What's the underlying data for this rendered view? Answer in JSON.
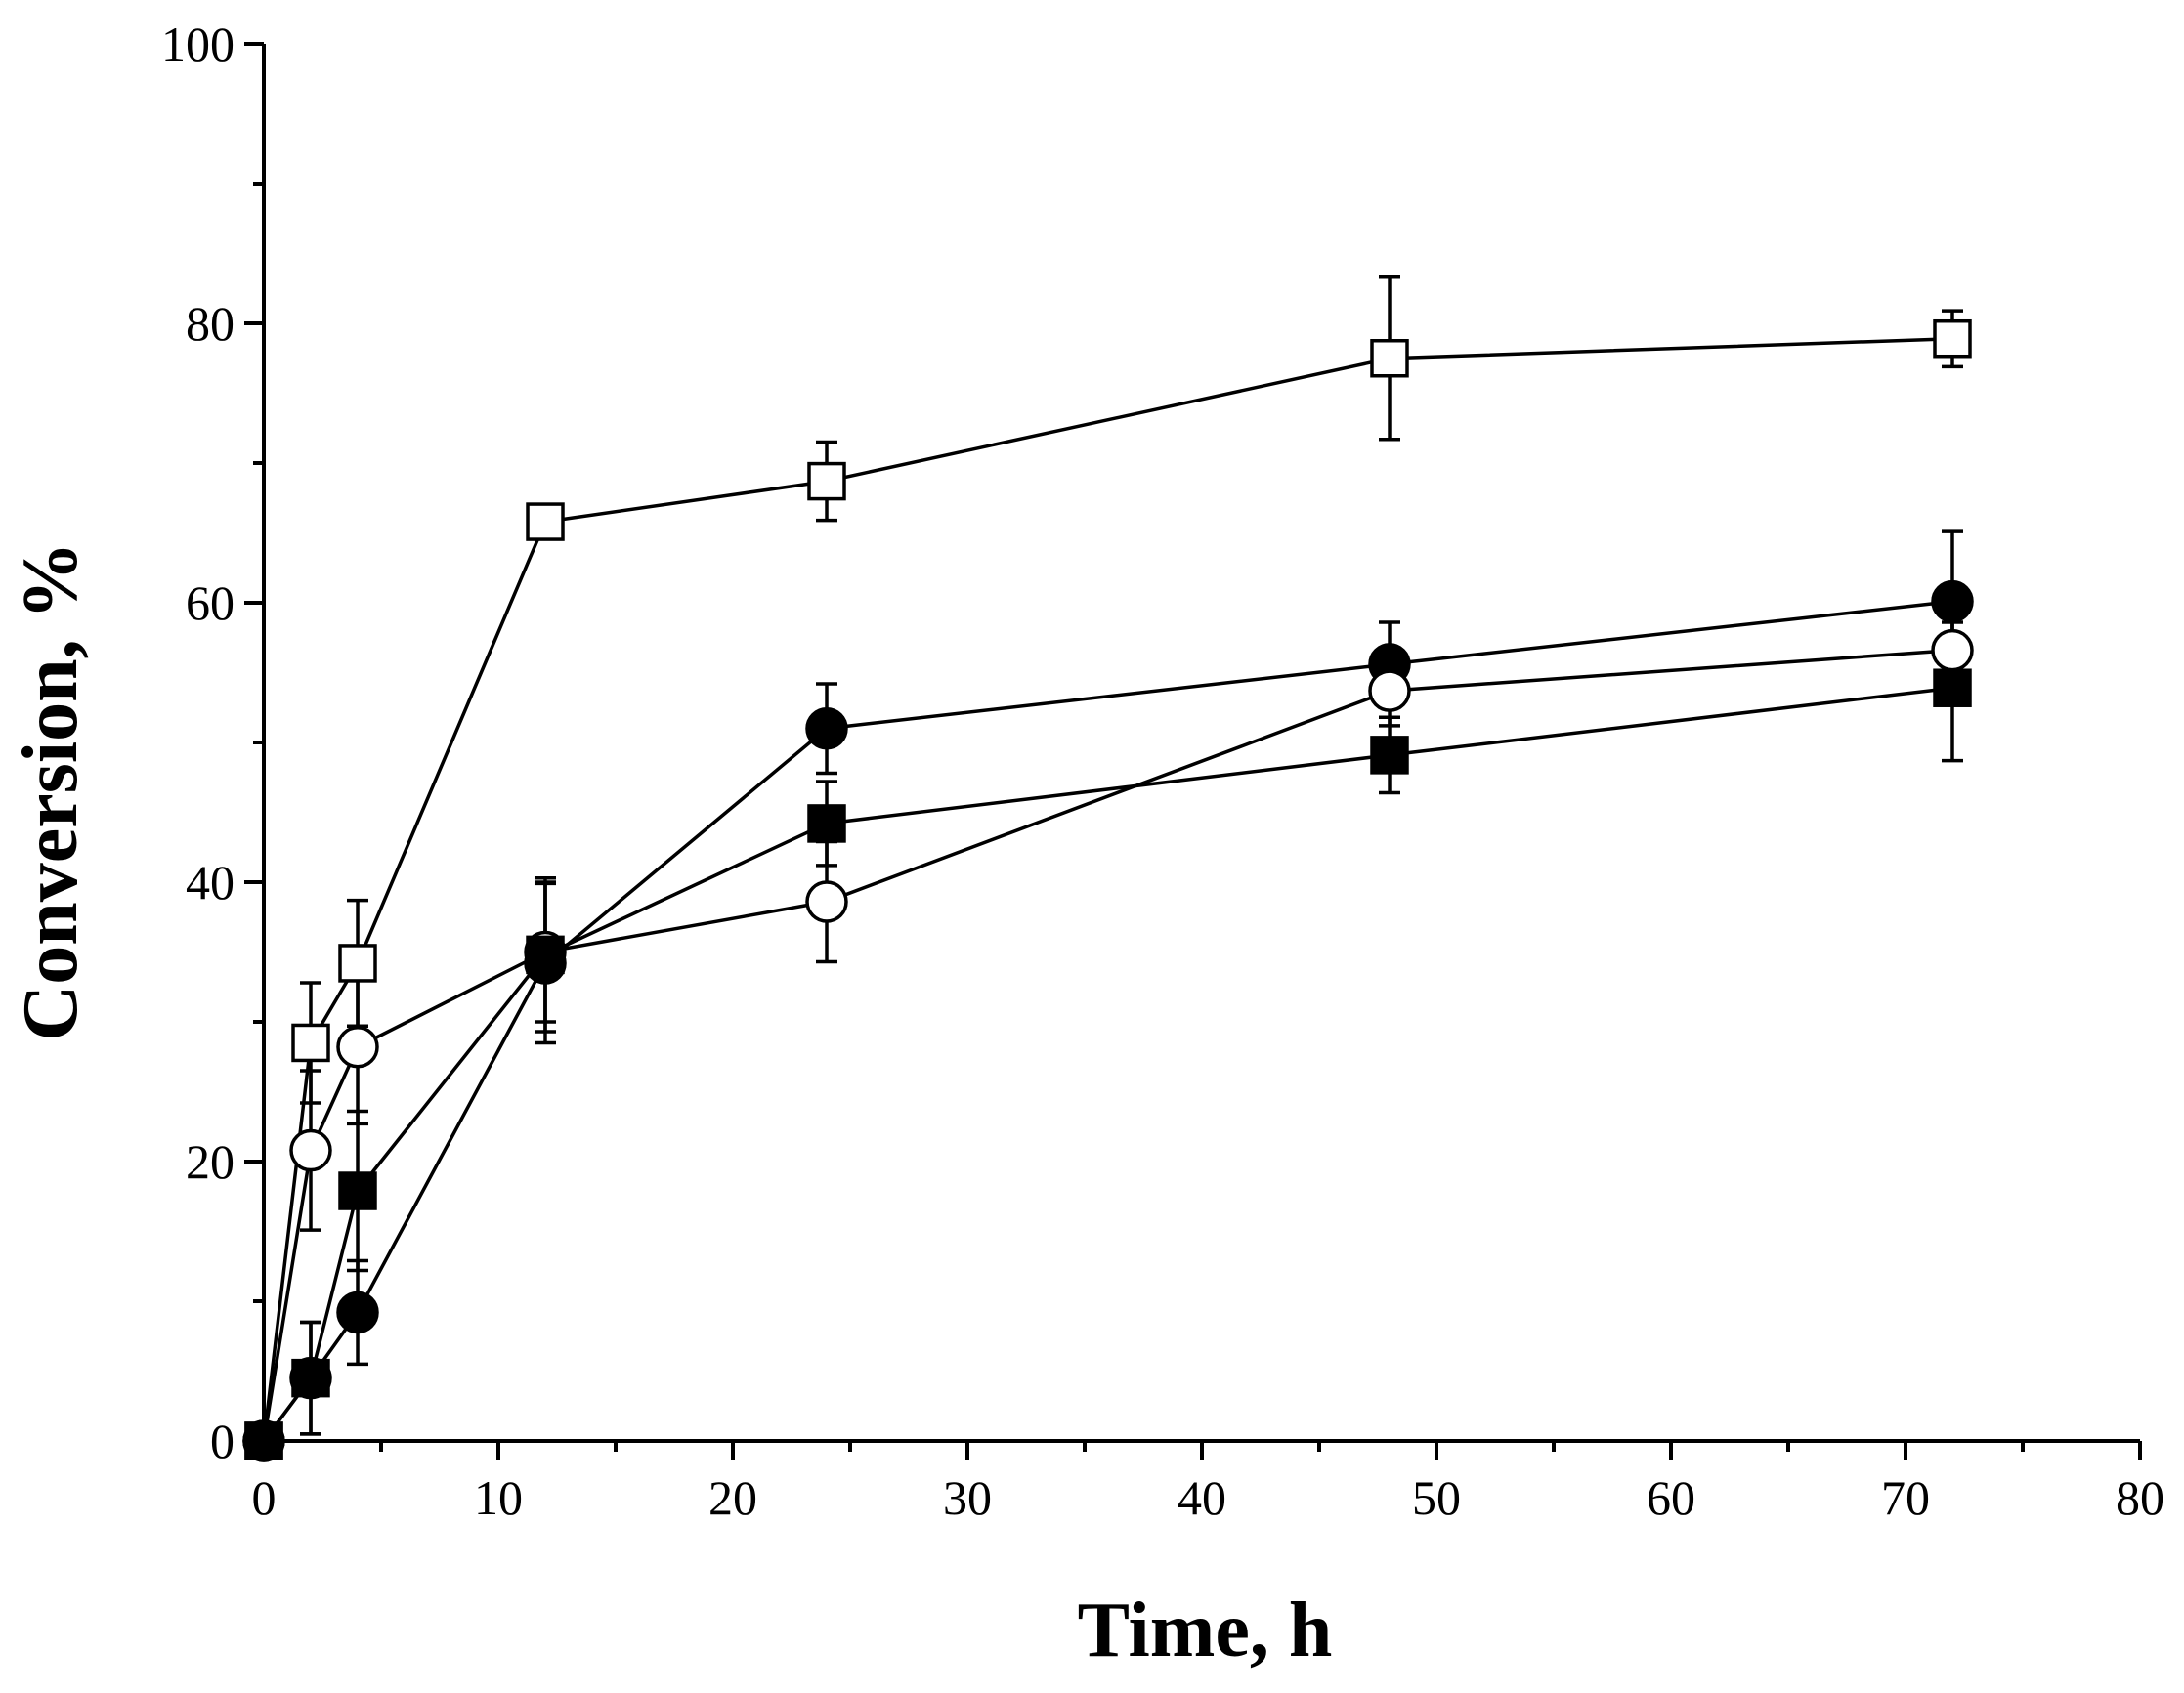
{
  "chart_data": {
    "type": "scatter",
    "title": "",
    "xlabel": "Time, h",
    "ylabel": "Conversion, %",
    "xlim": [
      0,
      80
    ],
    "ylim": [
      0,
      100
    ],
    "x_major_ticks": [
      0,
      10,
      20,
      30,
      40,
      50,
      60,
      70,
      80
    ],
    "x_major_tick_labels": [
      "0",
      "10",
      "20",
      "30",
      "40",
      "50",
      "60",
      "70",
      "80"
    ],
    "x_minor_ticks": [
      5,
      15,
      25,
      35,
      45,
      55,
      65,
      75
    ],
    "y_major_ticks": [
      0,
      20,
      40,
      60,
      80,
      100
    ],
    "y_major_tick_labels": [
      "0",
      "20",
      "40",
      "60",
      "80",
      "100"
    ],
    "y_minor_ticks": [
      10,
      30,
      50,
      70,
      90
    ],
    "grid": false,
    "legend": "none",
    "x": [
      0,
      2,
      4,
      12,
      24,
      48,
      72
    ],
    "series": [
      {
        "name": "open square",
        "marker": "square-open",
        "values": [
          0,
          28.5,
          34.2,
          65.8,
          68.7,
          77.5,
          78.9
        ],
        "errors": [
          0,
          4.3,
          4.5,
          1.0,
          2.8,
          5.8,
          2.0
        ]
      },
      {
        "name": "filled circle",
        "marker": "circle-filled",
        "values": [
          0,
          4.5,
          9.2,
          34.2,
          51.0,
          55.6,
          60.1
        ],
        "errors": [
          0,
          4.0,
          3.7,
          5.7,
          3.2,
          3.0,
          5.0
        ]
      },
      {
        "name": "open circle",
        "marker": "circle-open",
        "values": [
          0,
          20.8,
          28.2,
          35.0,
          38.6,
          53.7,
          56.6
        ],
        "errors": [
          0,
          5.7,
          5.5,
          5.0,
          4.3,
          2.5,
          2.0
        ]
      },
      {
        "name": "filled square",
        "marker": "square-filled",
        "values": [
          0,
          4.5,
          17.9,
          34.8,
          44.2,
          49.1,
          53.9
        ],
        "errors": [
          0,
          4.0,
          5.7,
          5.5,
          3.0,
          2.7,
          5.2
        ]
      }
    ]
  },
  "colors": {
    "stroke": "#000000",
    "marker_fill_open": "#ffffff",
    "marker_fill_filled": "#000000"
  }
}
